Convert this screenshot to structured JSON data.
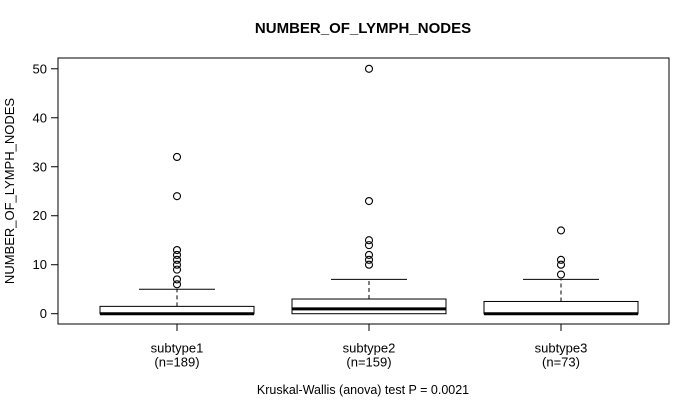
{
  "title": "NUMBER_OF_LYMPH_NODES",
  "colors": {
    "foreground": "#000000",
    "background": "#ffffff",
    "box_fill": "#ffffff"
  },
  "chart_data": {
    "type": "boxplot",
    "title": "NUMBER_OF_LYMPH_NODES",
    "ylabel": "NUMBER_OF_LYMPH_NODES",
    "xlabel": "",
    "annotation": "Kruskal-Wallis (anova) test P = 0.0021",
    "y_ticks": [
      0,
      10,
      20,
      30,
      40,
      50
    ],
    "ylim": [
      -2.1,
      52.2
    ],
    "grid": false,
    "legend": "none",
    "categories": [
      "subtype1",
      "subtype2",
      "subtype3"
    ],
    "category_sublabels": [
      "(n=189)",
      "(n=159)",
      "(n=73)"
    ],
    "series": [
      {
        "name": "subtype1",
        "n": 189,
        "q1": 0,
        "median": 0,
        "q3": 1.5,
        "whisker_low": 0,
        "whisker_high": 5,
        "outliers": [
          6,
          7,
          9,
          10,
          11,
          12,
          13,
          24,
          32
        ]
      },
      {
        "name": "subtype2",
        "n": 159,
        "q1": 0,
        "median": 1,
        "q3": 3,
        "whisker_low": 0,
        "whisker_high": 7,
        "outliers": [
          10,
          11,
          12,
          14,
          15,
          23,
          50
        ]
      },
      {
        "name": "subtype3",
        "n": 73,
        "q1": 0,
        "median": 0,
        "q3": 2.5,
        "whisker_low": 0,
        "whisker_high": 7,
        "outliers": [
          8,
          10,
          11,
          17
        ]
      }
    ]
  }
}
